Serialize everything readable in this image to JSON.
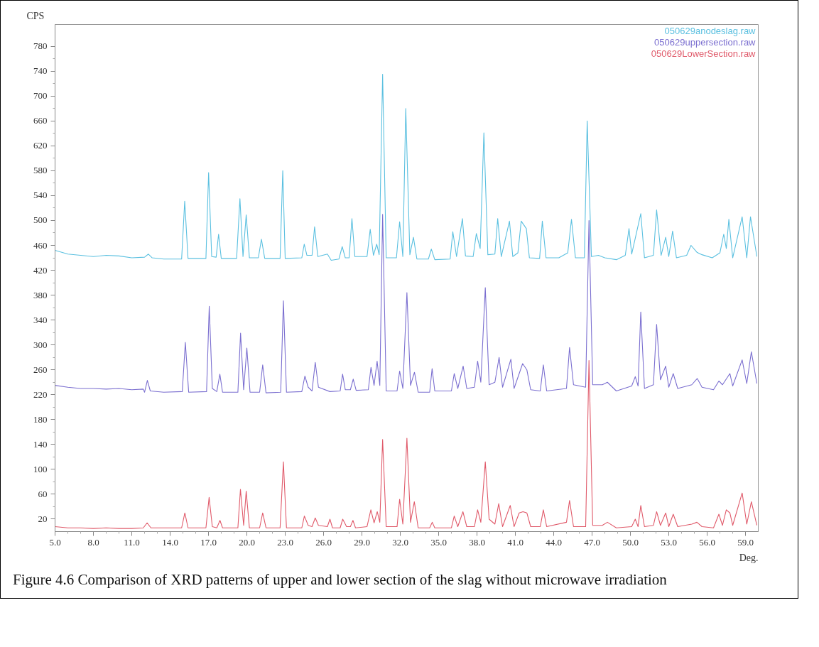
{
  "chart_data": {
    "type": "line",
    "ylabel": "CPS",
    "xlabel": "Deg.",
    "xlim": [
      5,
      60
    ],
    "ylim": [
      0,
      815
    ],
    "xticks": [
      {
        "value": 5,
        "label": "5.0"
      },
      {
        "value": 8,
        "label": "8.0"
      },
      {
        "value": 11,
        "label": "11.0"
      },
      {
        "value": 14,
        "label": "14.0"
      },
      {
        "value": 17,
        "label": "17.0"
      },
      {
        "value": 20,
        "label": "20.0"
      },
      {
        "value": 23,
        "label": "23.0"
      },
      {
        "value": 26,
        "label": "26.0"
      },
      {
        "value": 29,
        "label": "29.0"
      },
      {
        "value": 32,
        "label": "32.0"
      },
      {
        "value": 35,
        "label": "35.0"
      },
      {
        "value": 38,
        "label": "38.0"
      },
      {
        "value": 41,
        "label": "41.0"
      },
      {
        "value": 44,
        "label": "44.0"
      },
      {
        "value": 47,
        "label": "47.0"
      },
      {
        "value": 50,
        "label": "50.0"
      },
      {
        "value": 53,
        "label": "53.0"
      },
      {
        "value": 56,
        "label": "56.0"
      },
      {
        "value": 59,
        "label": "59.0"
      }
    ],
    "yticks": [
      20,
      60,
      100,
      140,
      180,
      220,
      260,
      300,
      340,
      380,
      420,
      460,
      500,
      540,
      580,
      620,
      660,
      700,
      740,
      780
    ],
    "grid": false,
    "legend": "top right",
    "marker": "none",
    "line_style": "solid",
    "annotations": [
      "Figure 4.6 Comparison of XRD patterns of upper and lower section of the slag without microwave irradiation"
    ],
    "series": [
      {
        "name": "050629anodeslag.raw",
        "color": "#5bc0e0",
        "x": [
          5.0,
          6.0,
          7.0,
          8.0,
          9.0,
          10.0,
          11.0,
          12.0,
          12.3,
          12.6,
          13.5,
          14.9,
          15.14,
          15.4,
          16.8,
          17.01,
          17.25,
          17.6,
          17.79,
          18.0,
          19.2,
          19.46,
          19.7,
          19.95,
          20.2,
          20.9,
          21.14,
          21.4,
          22.6,
          22.81,
          23.0,
          24.3,
          24.49,
          24.7,
          25.1,
          25.3,
          25.55,
          26.3,
          26.6,
          27.2,
          27.46,
          27.7,
          28.0,
          28.22,
          28.45,
          29.4,
          29.65,
          29.9,
          30.16,
          30.35,
          30.62,
          30.9,
          31.7,
          31.95,
          32.2,
          32.43,
          32.75,
          33.03,
          33.3,
          34.2,
          34.43,
          34.7,
          35.9,
          36.11,
          36.4,
          36.86,
          37.1,
          37.7,
          37.95,
          38.25,
          38.54,
          38.85,
          39.4,
          39.62,
          39.9,
          40.54,
          40.8,
          41.2,
          41.46,
          41.86,
          42.1,
          42.9,
          43.11,
          43.4,
          44.4,
          45.1,
          45.39,
          45.7,
          46.4,
          46.62,
          46.95,
          47.5,
          48.0,
          48.9,
          49.6,
          49.89,
          50.1,
          50.81,
          51.1,
          51.8,
          52.05,
          52.4,
          52.76,
          53.0,
          53.3,
          53.6,
          54.4,
          54.74,
          55.2,
          55.6,
          56.4,
          57.0,
          57.3,
          57.5,
          57.7,
          58.0,
          58.74,
          59.1,
          59.39,
          59.89
        ],
        "values": [
          452,
          446,
          444,
          442,
          444,
          443,
          440,
          441,
          446,
          440,
          438,
          438,
          531,
          439,
          439,
          577,
          442,
          441,
          478,
          439,
          439,
          535,
          442,
          509,
          440,
          440,
          470,
          439,
          439,
          580,
          439,
          440,
          462,
          444,
          444,
          490,
          442,
          446,
          436,
          438,
          458,
          440,
          440,
          503,
          442,
          442,
          486,
          444,
          462,
          445,
          735,
          440,
          440,
          498,
          442,
          680,
          445,
          473,
          438,
          438,
          454,
          437,
          438,
          482,
          442,
          503,
          443,
          442,
          479,
          455,
          641,
          445,
          446,
          503,
          442,
          499,
          442,
          448,
          499,
          487,
          440,
          439,
          499,
          440,
          440,
          448,
          502,
          440,
          440,
          660,
          442,
          444,
          440,
          437,
          444,
          487,
          446,
          511,
          440,
          444,
          517,
          444,
          473,
          442,
          483,
          440,
          444,
          460,
          449,
          445,
          440,
          448,
          478,
          455,
          502,
          440,
          506,
          440,
          506,
          442
        ]
      },
      {
        "name": "050629uppersection.raw",
        "color": "#7b6fd0",
        "x": [
          5.0,
          6.0,
          7.0,
          8.0,
          9.0,
          10.0,
          11.0,
          11.9,
          12.0,
          12.22,
          12.45,
          13.5,
          14.95,
          15.19,
          15.45,
          16.85,
          17.06,
          17.3,
          17.65,
          17.89,
          18.1,
          19.3,
          19.51,
          19.75,
          20.0,
          20.25,
          21.0,
          21.24,
          21.5,
          22.65,
          22.86,
          23.1,
          24.3,
          24.54,
          24.8,
          25.1,
          25.35,
          25.6,
          26.5,
          27.3,
          27.49,
          27.7,
          28.1,
          28.32,
          28.55,
          29.5,
          29.71,
          29.95,
          30.19,
          30.4,
          30.62,
          30.9,
          31.75,
          31.95,
          32.2,
          32.52,
          32.8,
          33.11,
          33.4,
          34.3,
          34.49,
          34.7,
          36.0,
          36.22,
          36.5,
          36.92,
          37.2,
          37.8,
          38.05,
          38.3,
          38.65,
          38.95,
          39.4,
          39.73,
          40.0,
          40.65,
          40.9,
          41.57,
          41.9,
          42.2,
          42.95,
          43.19,
          43.45,
          45.0,
          45.24,
          45.55,
          46.5,
          46.76,
          47.05,
          47.8,
          48.2,
          48.9,
          50.1,
          50.38,
          50.6,
          50.81,
          51.1,
          51.8,
          52.05,
          52.35,
          52.76,
          53.0,
          53.35,
          53.7,
          54.8,
          55.23,
          55.6,
          56.5,
          56.92,
          57.2,
          57.78,
          58.0,
          58.74,
          59.1,
          59.46,
          59.89
        ],
        "values": [
          235,
          232,
          230,
          230,
          229,
          230,
          228,
          229,
          224,
          243,
          226,
          224,
          225,
          304,
          224,
          225,
          362,
          230,
          225,
          253,
          224,
          224,
          319,
          228,
          295,
          224,
          224,
          268,
          223,
          224,
          371,
          224,
          225,
          250,
          232,
          226,
          272,
          232,
          225,
          226,
          253,
          228,
          228,
          245,
          227,
          228,
          264,
          235,
          274,
          235,
          510,
          226,
          226,
          258,
          230,
          384,
          235,
          256,
          224,
          224,
          262,
          226,
          226,
          254,
          230,
          266,
          230,
          232,
          274,
          240,
          392,
          236,
          240,
          280,
          232,
          277,
          230,
          270,
          260,
          228,
          226,
          268,
          226,
          230,
          296,
          236,
          232,
          500,
          236,
          236,
          240,
          226,
          234,
          249,
          234,
          353,
          230,
          236,
          333,
          244,
          266,
          232,
          254,
          230,
          236,
          246,
          232,
          228,
          242,
          236,
          254,
          234,
          276,
          238,
          289,
          238
        ]
      },
      {
        "name": "050629LowerSection.raw",
        "color": "#e05a6a",
        "x": [
          5.0,
          6.0,
          7.0,
          8.0,
          9.0,
          10.0,
          11.0,
          11.9,
          12.2,
          12.5,
          14.9,
          15.15,
          15.4,
          16.8,
          17.05,
          17.3,
          17.65,
          17.9,
          18.1,
          19.3,
          19.5,
          19.75,
          19.95,
          20.2,
          21.0,
          21.24,
          21.5,
          22.6,
          22.86,
          23.1,
          24.3,
          24.5,
          24.8,
          25.1,
          25.35,
          25.6,
          26.3,
          26.5,
          26.7,
          27.3,
          27.5,
          27.8,
          28.1,
          28.3,
          28.5,
          29.4,
          29.7,
          29.95,
          30.2,
          30.4,
          30.62,
          30.9,
          31.75,
          31.95,
          32.2,
          32.52,
          32.8,
          33.1,
          33.4,
          34.3,
          34.5,
          34.7,
          36.0,
          36.22,
          36.5,
          36.9,
          37.2,
          37.8,
          38.05,
          38.3,
          38.65,
          38.95,
          39.4,
          39.7,
          40.0,
          40.6,
          40.9,
          41.3,
          41.6,
          41.9,
          42.2,
          42.95,
          43.19,
          43.45,
          45.0,
          45.24,
          45.55,
          46.5,
          46.76,
          47.05,
          47.8,
          48.2,
          48.9,
          50.1,
          50.38,
          50.6,
          50.81,
          51.1,
          51.8,
          52.05,
          52.35,
          52.76,
          53.0,
          53.35,
          53.7,
          54.8,
          55.2,
          55.6,
          56.5,
          56.92,
          57.2,
          57.5,
          57.78,
          58.0,
          58.74,
          59.1,
          59.46,
          59.89
        ],
        "values": [
          8,
          6,
          6,
          5,
          6,
          5,
          5,
          6,
          14,
          6,
          6,
          30,
          6,
          6,
          55,
          8,
          6,
          18,
          6,
          6,
          68,
          10,
          65,
          6,
          6,
          30,
          6,
          6,
          112,
          6,
          6,
          25,
          10,
          8,
          22,
          10,
          8,
          20,
          6,
          6,
          20,
          8,
          8,
          18,
          6,
          8,
          35,
          14,
          32,
          15,
          148,
          8,
          8,
          52,
          12,
          150,
          15,
          48,
          6,
          6,
          15,
          6,
          6,
          25,
          8,
          32,
          8,
          8,
          35,
          15,
          112,
          20,
          12,
          45,
          8,
          42,
          8,
          30,
          32,
          30,
          8,
          8,
          35,
          8,
          15,
          50,
          8,
          8,
          275,
          10,
          10,
          15,
          6,
          8,
          20,
          8,
          42,
          8,
          10,
          32,
          10,
          30,
          8,
          28,
          8,
          12,
          15,
          8,
          6,
          28,
          10,
          35,
          30,
          10,
          62,
          12,
          48,
          10
        ]
      }
    ]
  }
}
